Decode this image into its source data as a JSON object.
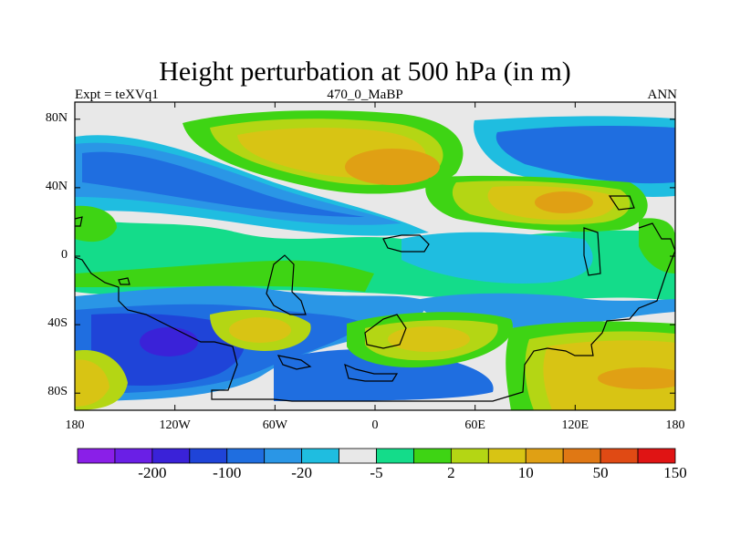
{
  "header": {
    "title": "Height perturbation at 500 hPa (in m)",
    "left": "Expt = teXVq1",
    "center": "470_0_MaBP",
    "right": "ANN"
  },
  "axes": {
    "y_ticks": [
      {
        "label": "80N",
        "lat": 80
      },
      {
        "label": "40N",
        "lat": 40
      },
      {
        "label": "0",
        "lat": 0
      },
      {
        "label": "40S",
        "lat": -40
      },
      {
        "label": "80S",
        "lat": -80
      }
    ],
    "x_ticks": [
      {
        "label": "180",
        "lon": -180
      },
      {
        "label": "120W",
        "lon": -120
      },
      {
        "label": "60W",
        "lon": -60
      },
      {
        "label": "0",
        "lon": 0
      },
      {
        "label": "60E",
        "lon": 60
      },
      {
        "label": "120E",
        "lon": 120
      },
      {
        "label": "180",
        "lon": 180
      }
    ],
    "lon_range": [
      -180,
      180
    ],
    "lat_range": [
      -90,
      90
    ]
  },
  "colorbar": {
    "colors": [
      "#8a1fe8",
      "#6a1fe6",
      "#3a22d8",
      "#1f44d8",
      "#1f6ee0",
      "#2a96e6",
      "#1fbde0",
      "#e8e8e8",
      "#14dc8a",
      "#3ed414",
      "#b4d614",
      "#d8c414",
      "#e0a014",
      "#e07814",
      "#e04a14",
      "#e01414"
    ],
    "labels": [
      {
        "text": "-200",
        "boundary": 2
      },
      {
        "text": "-100",
        "boundary": 4
      },
      {
        "text": "-20",
        "boundary": 6
      },
      {
        "text": "-5",
        "boundary": 8
      },
      {
        "text": "2",
        "boundary": 10
      },
      {
        "text": "10",
        "boundary": 12
      },
      {
        "text": "50",
        "boundary": 14
      },
      {
        "text": "150",
        "boundary": 16
      }
    ]
  }
}
